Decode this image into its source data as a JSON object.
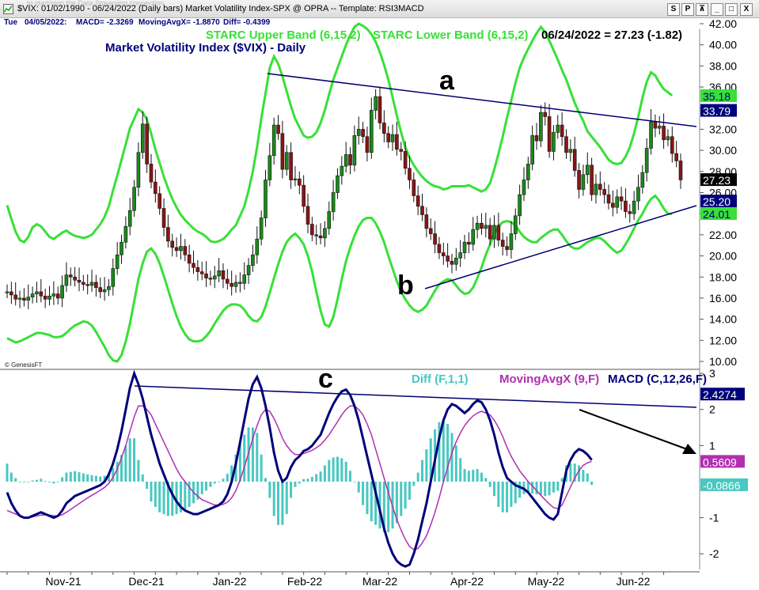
{
  "window": {
    "ghost_text": "to start/stop the Data Streaming connection",
    "title": "$VIX: 01/02/1990 - 06/24/2022  (Daily bars)   Market Volatility Index-SPX @ OPRA  --  Template: RSI3MACD",
    "buttons": [
      "S",
      "P",
      "⊼",
      "_",
      "□",
      "X"
    ]
  },
  "info_bar": {
    "day": "Tue",
    "date": "04/05/2022:",
    "macd": "MACD= -2.3269",
    "avg": "MovingAvgX= -1.8870",
    "diff": "Diff= -0.4399"
  },
  "colors": {
    "price_up": "#1a8a1a",
    "price_down": "#8b1414",
    "band": "#38e038",
    "trendline": "#00006e",
    "macd": "#00007a",
    "signal": "#b030b0",
    "histogram": "#48c8c0"
  },
  "chart_data": [
    {
      "type": "candlestick",
      "title": "Market Volatility Index ($VIX) - Daily",
      "legend": [
        "STARC Upper Band (6,15,2)",
        "STARC Lower Band (6,15,2)"
      ],
      "last_quote": "06/24/2022 = 27.23 (-1.82)",
      "ylim": [
        10,
        42
      ],
      "y_ticks": [
        "10.00",
        "12.00",
        "14.00",
        "16.00",
        "18.00",
        "20.00",
        "22.00",
        "24.00",
        "26.00",
        "28.00",
        "30.00",
        "32.00",
        "34.00",
        "36.00",
        "38.00",
        "40.00",
        "42.00"
      ],
      "x_labels": [
        "Nov-21",
        "Dec-21",
        "Jan-22",
        "Feb-22",
        "Mar-22",
        "Apr-22",
        "May-22",
        "Jun-22"
      ],
      "price_markers": [
        {
          "label": "35.18",
          "value": 35.18,
          "style": "band"
        },
        {
          "label": "33.79",
          "value": 33.79,
          "style": "line"
        },
        {
          "label": "27.23",
          "value": 27.23,
          "style": "price"
        },
        {
          "label": "25.20",
          "value": 25.2,
          "style": "line"
        },
        {
          "label": "24.01",
          "value": 24.01,
          "style": "band"
        }
      ],
      "annotations": [
        "a",
        "b"
      ],
      "copyright": "© GenesisFT",
      "close": [
        16.6,
        16.3,
        15.9,
        16.0,
        15.8,
        16.1,
        16.4,
        16.6,
        16.2,
        15.9,
        16.2,
        16.4,
        16.0,
        17.2,
        18.2,
        18.0,
        17.7,
        17.5,
        17.3,
        17.2,
        17.5,
        17.0,
        16.6,
        16.8,
        17.1,
        18.8,
        20.1,
        21.3,
        22.8,
        24.3,
        26.5,
        29.8,
        32.5,
        28.7,
        27.0,
        25.9,
        24.5,
        22.7,
        21.4,
        20.8,
        20.5,
        20.9,
        20.1,
        19.3,
        18.9,
        18.5,
        18.3,
        17.9,
        17.8,
        18.1,
        18.6,
        17.8,
        17.4,
        17.1,
        17.5,
        17.4,
        18.2,
        19.1,
        20.1,
        21.6,
        23.6,
        27.2,
        29.5,
        32.4,
        31.6,
        28.2,
        29.8,
        27.2,
        27.3,
        26.7,
        24.7,
        23.0,
        22.0,
        21.9,
        21.7,
        22.6,
        24.2,
        26.0,
        27.6,
        28.5,
        29.6,
        28.6,
        31.4,
        32.0,
        31.3,
        29.8,
        33.8,
        35.1,
        32.6,
        31.6,
        30.8,
        31.5,
        30.1,
        29.9,
        28.3,
        27.2,
        25.7,
        24.7,
        23.9,
        22.6,
        22.1,
        21.1,
        20.3,
        20.0,
        19.5,
        19.2,
        19.8,
        20.3,
        21.3,
        21.1,
        22.5,
        23.1,
        22.6,
        22.9,
        21.6,
        22.9,
        21.5,
        20.9,
        20.6,
        22.1,
        23.8,
        25.8,
        27.2,
        28.7,
        31.4,
        30.9,
        33.6,
        33.2,
        29.9,
        31.7,
        32.4,
        31.3,
        29.8,
        30.1,
        28.1,
        26.3,
        27.7,
        28.6,
        25.8,
        26.8,
        26.3,
        25.8,
        25.0,
        24.6,
        25.6,
        25.2,
        24.2,
        24.0,
        25.2,
        26.5,
        27.9,
        30.2,
        32.7,
        32.1,
        32.3,
        31.0,
        31.3,
        29.7,
        29.0,
        27.2
      ],
      "starc_upper": [
        24.8,
        23.5,
        22.3,
        21.5,
        21.3,
        21.8,
        22.7,
        23.0,
        22.8,
        22.3,
        21.8,
        21.6,
        21.9,
        22.2,
        22.4,
        22.1,
        21.9,
        21.8,
        21.7,
        21.8,
        22.0,
        22.5,
        23.0,
        23.7,
        24.7,
        26.2,
        27.6,
        29.1,
        30.6,
        32.1,
        33.0,
        33.9,
        33.6,
        32.9,
        31.6,
        30.1,
        28.8,
        27.5,
        26.4,
        25.4,
        24.6,
        23.9,
        23.4,
        23.0,
        22.6,
        22.3,
        22.1,
        21.8,
        21.4,
        21.3,
        21.4,
        21.6,
        22.0,
        22.5,
        22.9,
        23.8,
        24.7,
        26.2,
        28.0,
        30.3,
        33.0,
        35.4,
        37.8,
        38.9,
        38.2,
        37.0,
        35.6,
        34.2,
        33.0,
        32.2,
        31.4,
        31.2,
        31.3,
        31.7,
        32.6,
        33.8,
        35.3,
        36.7,
        37.8,
        38.9,
        40.0,
        40.9,
        41.7,
        42.0,
        41.8,
        41.5,
        41.0,
        40.3,
        39.3,
        38.1,
        36.7,
        35.0,
        33.3,
        31.7,
        30.3,
        29.3,
        28.6,
        28.0,
        27.5,
        27.1,
        26.8,
        26.6,
        26.5,
        26.3,
        26.4,
        26.6,
        26.6,
        26.6,
        26.6,
        26.7,
        26.5,
        26.3,
        26.1,
        26.3,
        26.9,
        28.2,
        29.7,
        31.3,
        33.1,
        34.7,
        36.4,
        37.8,
        38.8,
        39.6,
        40.4,
        41.1,
        41.7,
        41.2,
        40.4,
        39.5,
        38.6,
        37.6,
        36.7,
        35.6,
        34.5,
        33.6,
        32.8,
        31.8,
        31.3,
        30.8,
        30.3,
        29.7,
        29.1,
        28.8,
        28.7,
        28.8,
        29.4,
        30.3,
        31.6,
        33.2,
        35.0,
        36.5,
        37.4,
        37.1,
        36.4,
        35.8,
        35.5,
        35.2
      ],
      "starc_lower": [
        12.2,
        12.0,
        11.8,
        11.9,
        12.1,
        12.3,
        12.5,
        12.7,
        12.7,
        12.6,
        12.5,
        12.3,
        12.3,
        12.4,
        12.7,
        13.1,
        13.4,
        13.6,
        13.8,
        13.7,
        13.4,
        12.8,
        12.1,
        11.4,
        10.6,
        10.1,
        10.0,
        10.6,
        11.9,
        13.6,
        15.7,
        17.8,
        19.3,
        20.4,
        20.7,
        20.2,
        19.3,
        18.1,
        16.8,
        15.5,
        14.3,
        13.3,
        12.6,
        12.1,
        11.9,
        11.9,
        12.0,
        12.4,
        12.9,
        13.6,
        14.2,
        14.8,
        15.2,
        15.4,
        15.4,
        15.3,
        14.9,
        14.3,
        13.9,
        13.8,
        14.2,
        15.2,
        16.5,
        17.9,
        19.2,
        20.4,
        21.3,
        21.8,
        22.1,
        21.7,
        21.1,
        20.0,
        18.5,
        16.6,
        14.8,
        13.5,
        13.3,
        14.2,
        15.9,
        17.8,
        19.5,
        20.8,
        21.9,
        22.8,
        23.4,
        23.6,
        23.6,
        23.1,
        22.3,
        21.3,
        20.0,
        18.8,
        17.6,
        16.6,
        15.9,
        15.3,
        14.9,
        14.7,
        14.9,
        15.3,
        16.0,
        16.7,
        17.3,
        17.6,
        17.8,
        17.7,
        17.2,
        16.7,
        16.4,
        16.5,
        17.0,
        17.9,
        18.9,
        20.1,
        21.1,
        22.1,
        22.8,
        23.2,
        23.3,
        23.2,
        22.9,
        22.3,
        21.8,
        21.5,
        21.3,
        21.3,
        21.7,
        22.0,
        22.3,
        22.5,
        22.5,
        22.0,
        21.4,
        20.9,
        20.7,
        20.7,
        21.0,
        21.3,
        21.5,
        21.7,
        21.7,
        21.4,
        21.0,
        20.6,
        20.3,
        20.5,
        21.1,
        21.8,
        22.6,
        23.4,
        24.0,
        24.8,
        25.4,
        25.7,
        25.2,
        24.5,
        24.0,
        24.0
      ]
    },
    {
      "type": "line",
      "legend": [
        "Diff (F,1,1)",
        "MovingAvgX (9,F)",
        "MACD (C,12,26,F)"
      ],
      "annotations": [
        "c"
      ],
      "ylim": [
        -2.5,
        3.2
      ],
      "y_ticks": [
        "-2",
        "-1",
        "1",
        "2",
        "3"
      ],
      "value_markers": [
        {
          "label": "2.4274",
          "value": 2.4274,
          "style": "trend"
        },
        {
          "label": "0.5609",
          "value": 0.5609,
          "style": "signal"
        },
        {
          "label": "-0.0866",
          "value": -0.0866,
          "style": "diff"
        }
      ],
      "macd": [
        -0.3,
        -0.6,
        -0.8,
        -0.95,
        -1.0,
        -1.0,
        -0.95,
        -0.9,
        -0.85,
        -0.9,
        -0.95,
        -1.0,
        -0.95,
        -0.8,
        -0.6,
        -0.5,
        -0.4,
        -0.35,
        -0.3,
        -0.25,
        -0.2,
        -0.15,
        -0.1,
        0.0,
        0.2,
        0.5,
        0.9,
        1.4,
        2.0,
        2.6,
        3.0,
        2.7,
        2.3,
        1.8,
        1.3,
        0.9,
        0.5,
        0.2,
        -0.1,
        -0.35,
        -0.55,
        -0.7,
        -0.8,
        -0.85,
        -0.9,
        -0.9,
        -0.85,
        -0.8,
        -0.75,
        -0.7,
        -0.65,
        -0.55,
        -0.35,
        0.0,
        0.5,
        1.1,
        1.7,
        2.3,
        2.7,
        2.9,
        2.6,
        2.1,
        1.5,
        0.8,
        0.3,
        0.0,
        0.1,
        0.4,
        0.6,
        0.7,
        0.85,
        0.9,
        1.0,
        1.15,
        1.3,
        1.6,
        1.9,
        2.15,
        2.35,
        2.5,
        2.55,
        2.4,
        2.1,
        1.7,
        1.2,
        0.7,
        0.2,
        -0.3,
        -0.8,
        -1.3,
        -1.7,
        -2.0,
        -2.2,
        -2.3,
        -2.35,
        -2.3,
        -2.0,
        -1.6,
        -1.1,
        -0.6,
        0.0,
        0.6,
        1.2,
        1.7,
        2.0,
        2.15,
        2.1,
        2.0,
        1.9,
        2.0,
        2.15,
        2.25,
        2.2,
        2.0,
        1.7,
        1.3,
        0.8,
        0.4,
        0.1,
        0.0,
        -0.1,
        -0.15,
        -0.2,
        -0.3,
        -0.45,
        -0.6,
        -0.75,
        -0.9,
        -1.0,
        -1.05,
        -0.9,
        -0.3,
        0.3,
        0.6,
        0.8,
        0.9,
        0.85,
        0.75,
        0.6
      ],
      "signal": [
        -0.8,
        -0.85,
        -0.9,
        -0.95,
        -0.98,
        -1.0,
        -0.98,
        -0.95,
        -0.93,
        -0.92,
        -0.93,
        -0.95,
        -0.95,
        -0.92,
        -0.85,
        -0.77,
        -0.69,
        -0.61,
        -0.53,
        -0.45,
        -0.38,
        -0.31,
        -0.24,
        -0.16,
        -0.05,
        0.12,
        0.35,
        0.66,
        1.0,
        1.4,
        1.8,
        2.1,
        2.1,
        2.0,
        1.85,
        1.6,
        1.35,
        1.1,
        0.85,
        0.6,
        0.35,
        0.15,
        0.0,
        -0.15,
        -0.3,
        -0.4,
        -0.5,
        -0.55,
        -0.6,
        -0.65,
        -0.65,
        -0.63,
        -0.57,
        -0.45,
        -0.25,
        0.05,
        0.4,
        0.8,
        1.2,
        1.55,
        1.85,
        2.0,
        1.95,
        1.75,
        1.5,
        1.2,
        1.0,
        0.85,
        0.75,
        0.75,
        0.78,
        0.82,
        0.87,
        0.94,
        1.02,
        1.15,
        1.3,
        1.48,
        1.66,
        1.85,
        2.0,
        2.1,
        2.1,
        2.0,
        1.85,
        1.6,
        1.3,
        0.9,
        0.5,
        0.1,
        -0.3,
        -0.7,
        -1.05,
        -1.35,
        -1.6,
        -1.8,
        -1.88,
        -1.85,
        -1.7,
        -1.5,
        -1.2,
        -0.85,
        -0.45,
        0.0,
        0.4,
        0.8,
        1.1,
        1.35,
        1.55,
        1.7,
        1.82,
        1.9,
        1.95,
        1.9,
        1.85,
        1.7,
        1.5,
        1.25,
        0.95,
        0.7,
        0.5,
        0.3,
        0.15,
        0.0,
        -0.12,
        -0.25,
        -0.38,
        -0.5,
        -0.62,
        -0.72,
        -0.75,
        -0.65,
        -0.4,
        -0.15,
        0.1,
        0.3,
        0.45,
        0.52,
        0.56
      ],
      "diff": [
        0.5,
        0.25,
        0.1,
        0.0,
        -0.02,
        0.0,
        0.03,
        0.05,
        0.08,
        0.02,
        -0.02,
        -0.05,
        0.0,
        0.12,
        0.25,
        0.27,
        0.29,
        0.26,
        0.23,
        0.2,
        0.18,
        0.16,
        0.14,
        0.16,
        0.25,
        0.38,
        0.55,
        0.74,
        1.0,
        1.2,
        1.2,
        0.6,
        0.2,
        -0.2,
        -0.55,
        -0.7,
        -0.85,
        -0.9,
        -0.95,
        -0.95,
        -0.9,
        -0.85,
        -0.8,
        -0.7,
        -0.6,
        -0.5,
        -0.35,
        -0.25,
        -0.15,
        -0.05,
        0.0,
        0.08,
        0.22,
        0.45,
        0.75,
        1.05,
        1.3,
        1.5,
        1.5,
        1.35,
        0.75,
        0.1,
        -0.45,
        -0.95,
        -1.2,
        -1.2,
        -0.9,
        -0.45,
        -0.15,
        -0.05,
        0.07,
        0.08,
        0.13,
        0.21,
        0.28,
        0.45,
        0.6,
        0.67,
        0.69,
        0.65,
        0.55,
        0.3,
        0.0,
        -0.3,
        -0.65,
        -0.9,
        -1.1,
        -1.2,
        -1.3,
        -1.4,
        -1.4,
        -1.3,
        -1.15,
        -0.95,
        -0.75,
        -0.5,
        -0.12,
        0.25,
        0.6,
        0.9,
        1.2,
        1.45,
        1.65,
        1.7,
        1.6,
        1.35,
        1.0,
        0.65,
        0.35,
        0.3,
        0.33,
        0.35,
        0.25,
        0.1,
        -0.15,
        -0.4,
        -0.7,
        -0.85,
        -0.85,
        -0.7,
        -0.6,
        -0.45,
        -0.35,
        -0.3,
        -0.33,
        -0.35,
        -0.37,
        -0.4,
        -0.38,
        -0.3,
        -0.25,
        0.1,
        0.45,
        0.5,
        0.5,
        0.45,
        0.33,
        0.23,
        -0.09
      ]
    }
  ]
}
